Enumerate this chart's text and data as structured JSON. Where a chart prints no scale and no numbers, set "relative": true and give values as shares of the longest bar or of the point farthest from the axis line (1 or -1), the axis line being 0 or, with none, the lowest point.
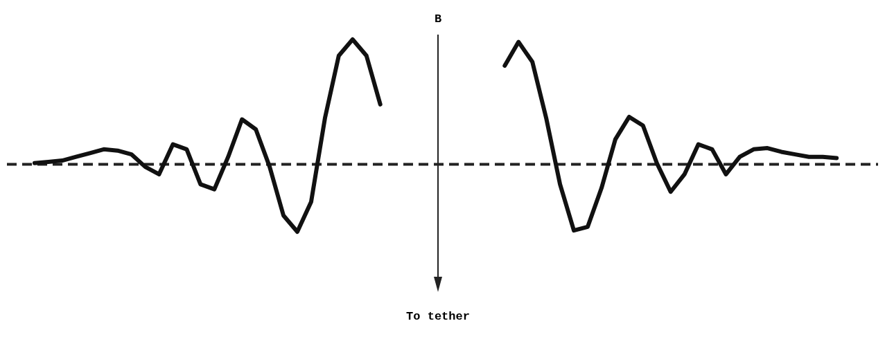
{
  "chart_data": {
    "type": "line",
    "relative": true,
    "categories": [
      null,
      null,
      null,
      null,
      null,
      null,
      null,
      null,
      null,
      null,
      null,
      null,
      null,
      null,
      null,
      null,
      null,
      null,
      null,
      null,
      null,
      null,
      null,
      null,
      null,
      null,
      null,
      null,
      null,
      null,
      null,
      null,
      null,
      null,
      null,
      null,
      null,
      null,
      null,
      null,
      null,
      null,
      null,
      null,
      null,
      null,
      null,
      null,
      null,
      null,
      null,
      null,
      null,
      null,
      null,
      null,
      null,
      null,
      null,
      null,
      null,
      null,
      null,
      null
    ],
    "series": [
      {
        "color": "#111111",
        "values": [
          null,
          null,
          0.01,
          0.02,
          0.03,
          0.06,
          0.09,
          0.12,
          0.11,
          0.08,
          -0.02,
          -0.08,
          0.16,
          0.12,
          -0.16,
          -0.2,
          0.06,
          0.36,
          0.28,
          -0.02,
          -0.41,
          -0.54,
          -0.3,
          0.37,
          0.87,
          1,
          0.87,
          0.48,
          null,
          null,
          null,
          null,
          null,
          null,
          null,
          null,
          null,
          null,
          null,
          null,
          null,
          null,
          null,
          null,
          null,
          null,
          null,
          null,
          null,
          null,
          null,
          null,
          null,
          null,
          null,
          null,
          null,
          null,
          null,
          null,
          null,
          null,
          null,
          null
        ]
      },
      {
        "color": "#111111",
        "values": [
          null,
          null,
          null,
          null,
          null,
          null,
          null,
          null,
          null,
          null,
          null,
          null,
          null,
          null,
          null,
          null,
          null,
          null,
          null,
          null,
          null,
          null,
          null,
          null,
          null,
          null,
          null,
          null,
          null,
          null,
          null,
          null,
          null,
          null,
          null,
          null,
          0.79,
          0.98,
          0.82,
          0.37,
          -0.16,
          -0.53,
          -0.5,
          -0.19,
          0.2,
          0.38,
          0.31,
          0.01,
          -0.22,
          -0.08,
          0.16,
          0.12,
          -0.08,
          0.06,
          0.12,
          0.13,
          0.1,
          0.08,
          0.06,
          0.06,
          0.05,
          null,
          null,
          null
        ]
      }
    ],
    "ref_lines": [
      {
        "axis": "y",
        "value": 0,
        "color": "#222222",
        "line_style": "dashed"
      }
    ],
    "marker": "none",
    "line_style": "solid",
    "annotations": [
      "B",
      "To tether"
    ]
  }
}
